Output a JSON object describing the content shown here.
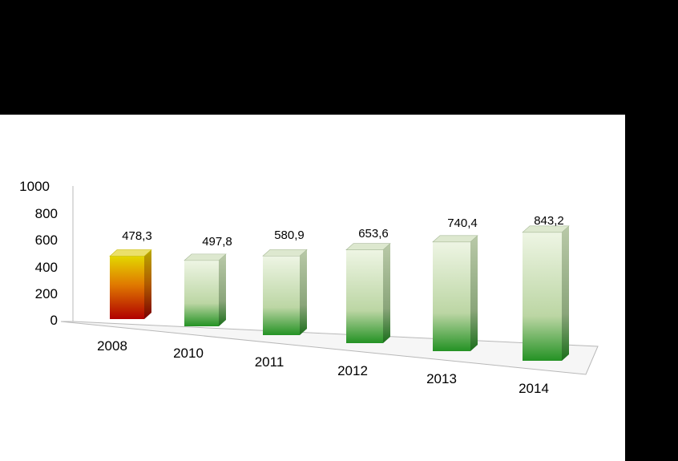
{
  "chart_data": {
    "type": "bar",
    "title": "",
    "xlabel": "",
    "ylabel": "",
    "categories": [
      "2008",
      "2010",
      "2011",
      "2012",
      "2013",
      "2014"
    ],
    "values": [
      478.3,
      497.8,
      580.9,
      653.6,
      740.4,
      843.2
    ],
    "data_labels": [
      "478,3",
      "497,8",
      "580,9",
      "653,6",
      "740,4",
      "843,2"
    ],
    "y_ticks": [
      "0",
      "200",
      "400",
      "600",
      "800",
      "1000"
    ],
    "ylim": [
      0,
      1000
    ],
    "grid": false,
    "legend": "none",
    "colors": {
      "highlight_top": "#e0d300",
      "highlight_bottom": "#b00000",
      "bar_top": "#eef5e4",
      "bar_bottom": "#239123",
      "background": "#000000",
      "panel": "#ffffff"
    }
  }
}
